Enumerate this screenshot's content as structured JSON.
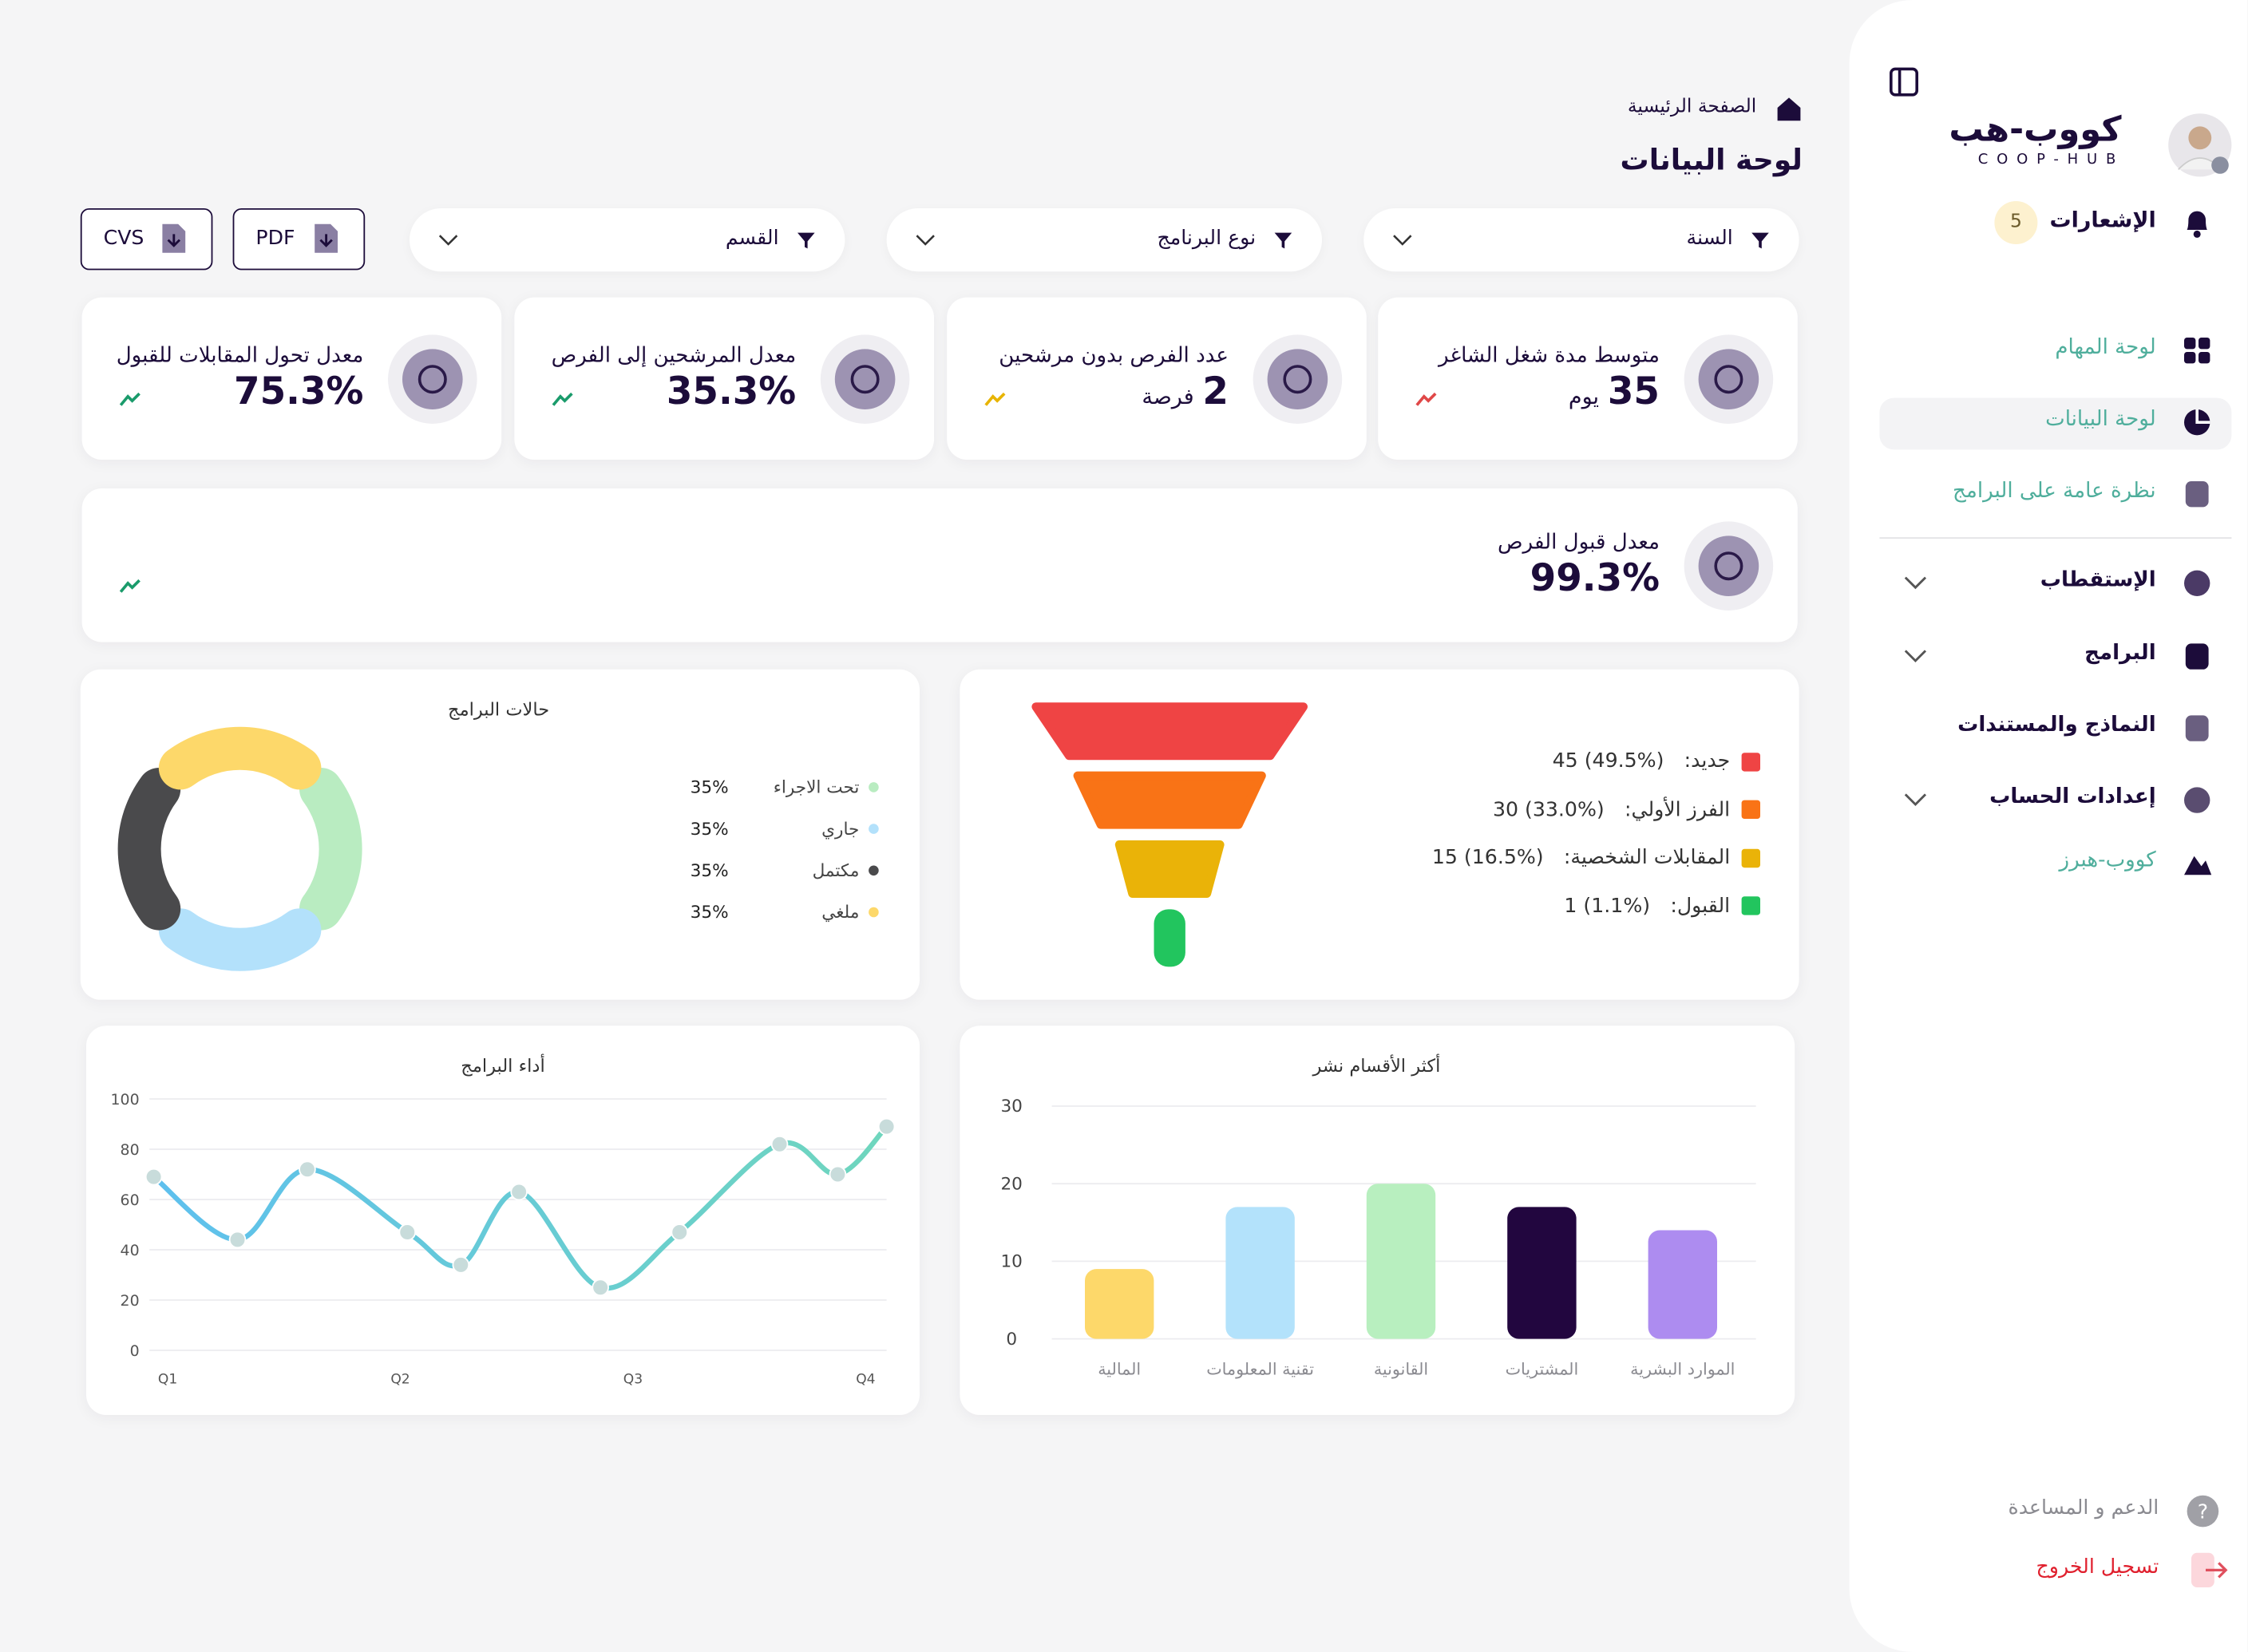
{
  "sidebar": {
    "brand": "كووب-هب",
    "brand_sub": "COOP-HUB",
    "notifications_label": "الإشعارات",
    "notifications_count": 5,
    "nav": [
      "لوحة المهام",
      "لوحة البيانات",
      "نظرة عامة على البرامج",
      "الإستقطاب",
      "البرامج",
      "النماذج والمستندات",
      "إعدادات الحساب",
      "كووب-هبرز"
    ],
    "support": "الدعم و المساعدة",
    "logout": "تسجيل الخروج"
  },
  "header": {
    "breadcrumb": "الصفحة الرئيسية",
    "title": "لوحة البيانات"
  },
  "filters": [
    "السنة",
    "نوع البرنامج",
    "القسم"
  ],
  "exports": [
    "PDF",
    "CVS"
  ],
  "kpis": [
    {
      "label": "متوسط مدة شغل الشاغر",
      "value": "35",
      "unit": "يوم"
    },
    {
      "label": "عدد الفرص بدون مرشحين",
      "value": "2",
      "unit": "فرصة"
    },
    {
      "label": "معدل المرشحين إلى الفرص",
      "value": "35.3%"
    },
    {
      "label": "معدل تحول المقابلات للقبول",
      "value": "75.3%"
    }
  ],
  "kpi_wide": {
    "label": "معدل قبول الفرص",
    "value": "99.3%"
  },
  "chart_data": [
    {
      "type": "pie",
      "donut": true,
      "title": "حالات البرامج",
      "categories": [
        "تحت الاجراء",
        "جاري",
        "مكتمل",
        "ملغي"
      ],
      "values": [
        35,
        35,
        35,
        35
      ],
      "value_labels": [
        "35%",
        "35%",
        "35%",
        "35%"
      ],
      "colors": [
        "#b9ecc1",
        "#b3e1fb",
        "#4a4a4c",
        "#fdd86a"
      ]
    },
    {
      "type": "funnel",
      "categories": [
        "جديد:",
        "الفرز الأولي:",
        "المقابلات الشخصية:",
        "القبول:"
      ],
      "values": [
        45,
        30,
        15,
        1
      ],
      "value_labels": [
        "45 (49.5%)",
        "30 (33.0%)",
        "15 (16.5%)",
        "1 (1.1%)"
      ],
      "colors": [
        "#ef4444",
        "#f97316",
        "#eab308",
        "#22c55e"
      ]
    },
    {
      "type": "line",
      "title": "أداء البرامج",
      "x": [
        0.94,
        1.3,
        1.6,
        2.03,
        2.26,
        2.51,
        2.86,
        3.2,
        3.63,
        3.88,
        4.09
      ],
      "values": [
        69,
        44,
        72,
        47,
        34,
        63,
        25,
        47,
        82,
        70,
        89
      ],
      "colors": [
        "#5ec0ee",
        "#6fd6bd"
      ],
      "xlim": [
        0.94,
        4.09
      ],
      "xticks": [
        {
          "value": 1,
          "label": "Q1"
        },
        {
          "value": 2,
          "label": "Q2"
        },
        {
          "value": 3,
          "label": "Q3"
        },
        {
          "value": 4,
          "label": "Q4"
        }
      ],
      "ylim": [
        0,
        100
      ],
      "yticks": [
        0,
        20,
        40,
        60,
        80,
        100
      ],
      "grid": true
    },
    {
      "type": "bar",
      "title": "أكثر الأقسام نشر",
      "categories": [
        "الموارد البشرية",
        "المشتريات",
        "القانونية",
        "تقنية المعلومات",
        "المالية"
      ],
      "values": [
        14,
        17,
        20,
        17,
        9
      ],
      "colors": [
        "#ad8cf0",
        "#22063f",
        "#b8efbf",
        "#b3e2fb",
        "#fdd86a"
      ],
      "ylim": [
        0,
        30
      ],
      "yticks": [
        0,
        10,
        20,
        30
      ],
      "grid": true
    }
  ]
}
